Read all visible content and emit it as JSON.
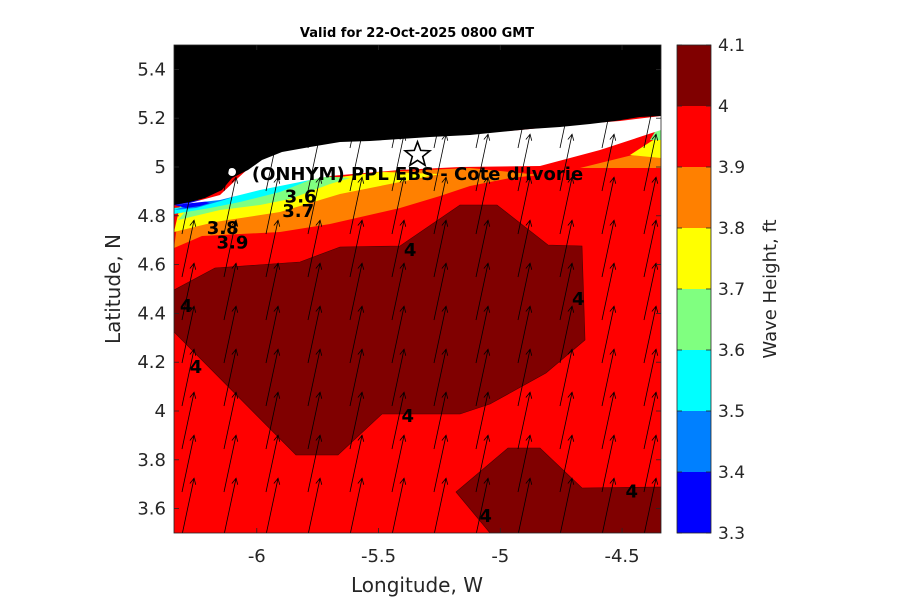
{
  "chart_data": {
    "type": "contour-map",
    "title": "Valid for 22-Oct-2025 0800 GMT",
    "xlabel": "Longitude, W",
    "ylabel": "Latitude, N",
    "colorbar_label": "Wave Height, ft",
    "xlim": [
      -6.34,
      -4.34
    ],
    "ylim": [
      3.5,
      5.5
    ],
    "xticks": [
      -6,
      -5.5,
      -5,
      -4.5
    ],
    "xtick_labels": [
      "-6",
      "-5.5",
      "-5",
      "-4.5"
    ],
    "yticks": [
      3.6,
      3.8,
      4.0,
      4.2,
      4.4,
      4.6,
      4.8,
      5.0,
      5.2,
      5.4
    ],
    "ytick_labels": [
      "3.6",
      "3.8",
      "4",
      "4.2",
      "4.4",
      "4.6",
      "4.8",
      "5",
      "5.2",
      "5.4"
    ],
    "colorbar": {
      "min": 3.3,
      "max": 4.1,
      "ticks": [
        "4.1",
        "4",
        "3.9",
        "3.8",
        "3.7",
        "3.6",
        "3.5",
        "3.4",
        "3.3"
      ],
      "levels": [
        {
          "from": 3.3,
          "to": 3.4,
          "color": "#0000ff"
        },
        {
          "from": 3.4,
          "to": 3.5,
          "color": "#0080ff"
        },
        {
          "from": 3.5,
          "to": 3.6,
          "color": "#00ffff"
        },
        {
          "from": 3.6,
          "to": 3.7,
          "color": "#80ff80"
        },
        {
          "from": 3.7,
          "to": 3.8,
          "color": "#ffff00"
        },
        {
          "from": 3.8,
          "to": 3.9,
          "color": "#ff8000"
        },
        {
          "from": 3.9,
          "to": 4.0,
          "color": "#ff0000"
        },
        {
          "from": 4.0,
          "to": 4.1,
          "color": "#800000"
        }
      ]
    },
    "station": {
      "label": "(ONHYM) PPL EBS  - Cote d'Ivorie",
      "lon": -5.34,
      "lat": 5.05
    },
    "contour_labels": [
      {
        "text": "3.6",
        "lon": -5.82,
        "lat": 4.88
      },
      {
        "text": "3.7",
        "lon": -5.83,
        "lat": 4.82
      },
      {
        "text": "3.8",
        "lon": -6.14,
        "lat": 4.75
      },
      {
        "text": "3.9",
        "lon": -6.1,
        "lat": 4.69
      },
      {
        "text": "4",
        "lon": -5.37,
        "lat": 4.66
      },
      {
        "text": "4",
        "lon": -6.29,
        "lat": 4.43
      },
      {
        "text": "4",
        "lon": -6.25,
        "lat": 4.18
      },
      {
        "text": "4",
        "lon": -5.38,
        "lat": 3.98
      },
      {
        "text": "4",
        "lon": -4.68,
        "lat": 4.46
      },
      {
        "text": "4",
        "lon": -4.46,
        "lat": 3.67
      },
      {
        "text": "4",
        "lon": -5.06,
        "lat": 3.57
      }
    ],
    "wave_direction": "arrows pointing north-northeast across the domain"
  }
}
